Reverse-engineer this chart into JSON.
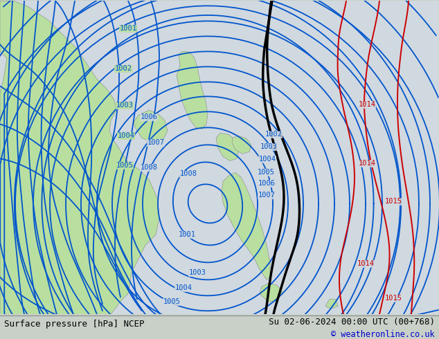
{
  "title_left": "Surface pressure [hPa] NCEP",
  "title_right": "Su 02-06-2024 00:00 UTC (00+768)",
  "copyright": "© weatheronline.co.uk",
  "bg_ocean": "#d0d8e0",
  "land_green": "#b8dfa0",
  "isobar_blue": "#0055cc",
  "isobar_red": "#cc0000",
  "isobar_black": "#000000",
  "lw_blue": 1.3,
  "lw_red": 1.4,
  "lw_black": 2.5,
  "label_fontsize": 7.5,
  "title_fontsize": 9,
  "figsize": [
    6.34,
    4.9
  ],
  "dpi": 100
}
